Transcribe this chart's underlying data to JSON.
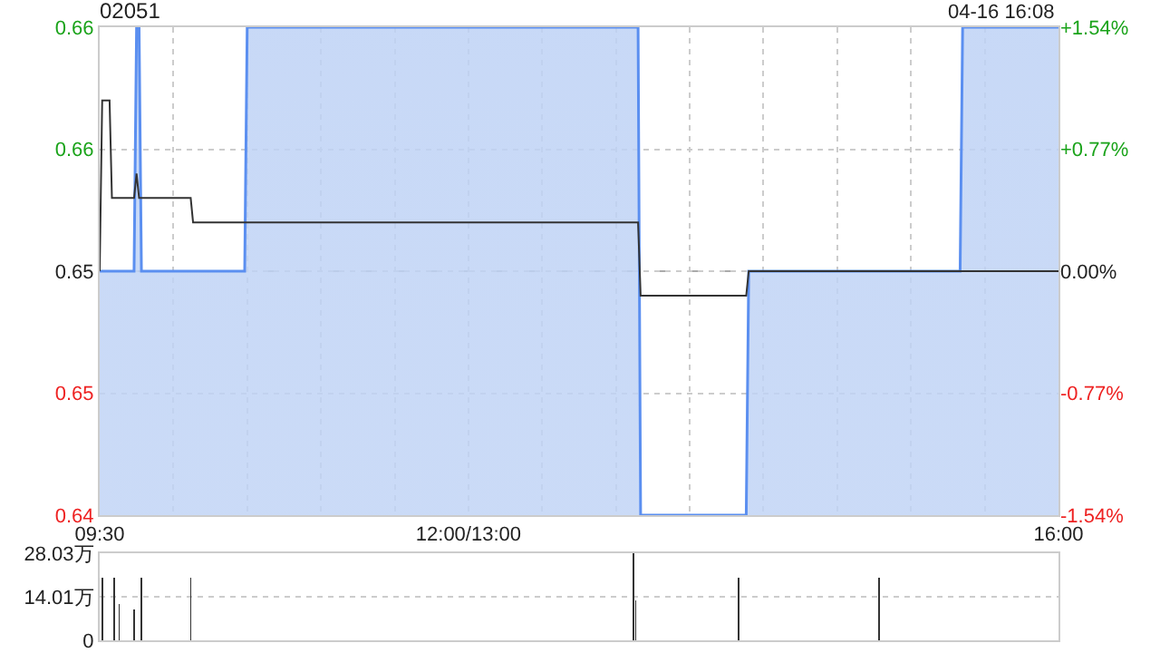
{
  "chart_data": [
    {
      "type": "area",
      "title": "02051",
      "annotations": [
        "04-16 16:08"
      ],
      "xlim": [
        9.5,
        16
      ],
      "xticks": [
        {
          "value": 9.5,
          "label": "09:30"
        },
        {
          "value": 10,
          "label": null
        },
        {
          "value": 10.5,
          "label": null
        },
        {
          "value": 11,
          "label": null
        },
        {
          "value": 11.5,
          "label": null
        },
        {
          "value": 12,
          "label": "12:00/13:00"
        },
        {
          "value": 12.5,
          "label": null
        },
        {
          "value": 13,
          "label": null
        },
        {
          "value": 13.5,
          "label": null
        },
        {
          "value": 14,
          "label": null
        },
        {
          "value": 14.5,
          "label": null
        },
        {
          "value": 15,
          "label": null
        },
        {
          "value": 15.5,
          "label": null
        },
        {
          "value": 16,
          "label": "16:00"
        }
      ],
      "ylim": [
        0.64,
        0.66
      ],
      "yticks": [
        {
          "value": 0.64,
          "label": "0.64"
        },
        {
          "value": 0.645,
          "label": "0.65"
        },
        {
          "value": 0.65,
          "label": "0.65"
        },
        {
          "value": 0.655,
          "label": "0.66"
        },
        {
          "value": 0.66,
          "label": "0.66"
        }
      ],
      "y2lim": [
        -1.54,
        1.54
      ],
      "y2ticks": [
        {
          "value": -1.54,
          "label": "-1.54%"
        },
        {
          "value": -0.77,
          "label": "-0.77%"
        },
        {
          "value": 0,
          "label": "0.00%"
        },
        {
          "value": 0.77,
          "label": "+0.77%"
        },
        {
          "value": 1.54,
          "label": "+1.54%"
        }
      ],
      "grid": true,
      "ref_lines": [
        {
          "axis": "y",
          "value": 0.65,
          "color": "#aaaaaa",
          "line_style": "dashed"
        }
      ],
      "series": [
        {
          "color": "#5b8ff0",
          "x": [
            9.5,
            9.733,
            9.75,
            9.767,
            9.783,
            10.483,
            10.5,
            13.15,
            13.167,
            13.883,
            13.9,
            15.333,
            15.35,
            16
          ],
          "values": [
            0.65,
            0.65,
            0.66,
            0.66,
            0.65,
            0.65,
            0.66,
            0.66,
            0.64,
            0.64,
            0.65,
            0.65,
            0.66,
            0.66
          ]
        },
        {
          "type": "line",
          "color": "#333333",
          "x": [
            9.5,
            9.517,
            9.567,
            9.583,
            9.733,
            9.75,
            9.767,
            10.117,
            10.133,
            13.15,
            13.167,
            13.883,
            13.9,
            16
          ],
          "values": [
            0.65,
            0.657,
            0.657,
            0.653,
            0.653,
            0.654,
            0.653,
            0.653,
            0.652,
            0.652,
            0.649,
            0.649,
            0.65,
            0.65
          ]
        }
      ]
    },
    {
      "type": "bar",
      "tick_labels": "y",
      "color": "#333333",
      "x": [
        9.517,
        9.6,
        9.633,
        9.733,
        9.783,
        10.117,
        13.117,
        13.133,
        13.833,
        14.783
      ],
      "values": [
        20.2,
        20.2,
        11.8,
        9.9,
        20.2,
        20.2,
        28,
        12.8,
        20.2,
        20.2
      ],
      "xlim": [
        9.5,
        16
      ],
      "xticks": [
        {
          "value": 9.5,
          "label": null
        },
        {
          "value": 12,
          "label": null
        },
        {
          "value": 16,
          "label": null
        }
      ],
      "ylim": [
        0,
        28.03
      ],
      "yticks": [
        {
          "value": 0,
          "label": "0"
        },
        {
          "value": 14.01,
          "label": "14.01万"
        },
        {
          "value": 28.03,
          "label": "28.03万"
        }
      ],
      "grid": "y"
    }
  ]
}
